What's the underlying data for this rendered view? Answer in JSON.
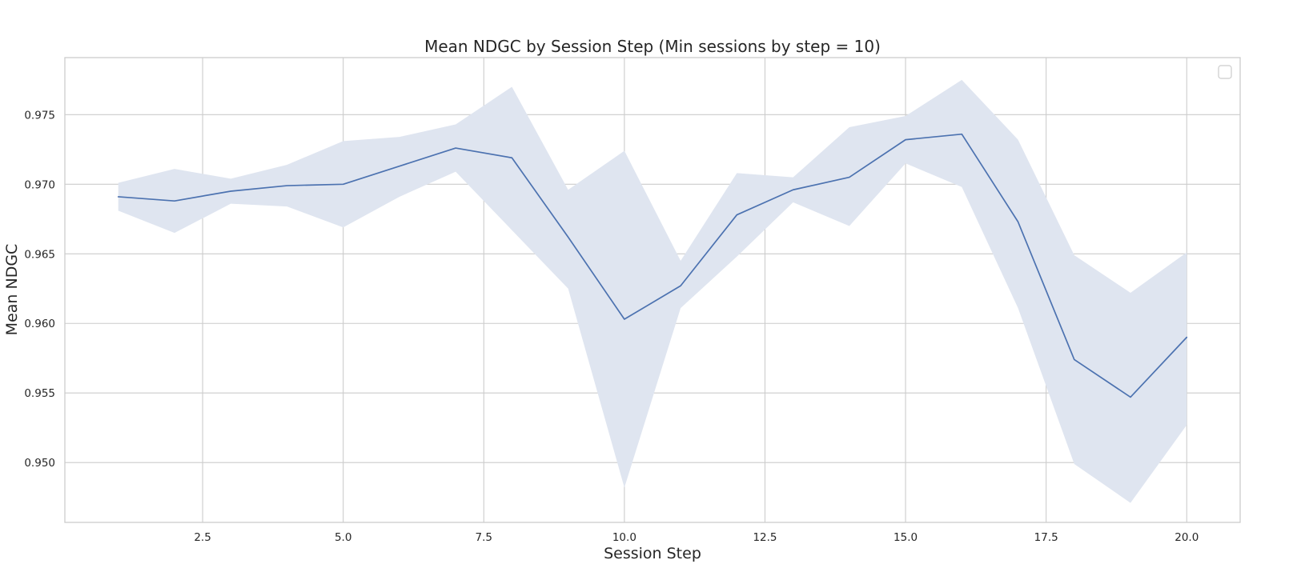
{
  "chart_data": {
    "type": "line",
    "title": "Mean NDGC by Session Step (Min sessions by step = 10)",
    "xlabel": "Session Step",
    "ylabel": "Mean NDGC",
    "xlim": [
      0.05,
      20.95
    ],
    "ylim": [
      0.9457,
      0.9791
    ],
    "xticks": [
      2.5,
      5.0,
      7.5,
      10.0,
      12.5,
      15.0,
      17.5,
      20.0
    ],
    "xtick_labels": [
      "2.5",
      "5.0",
      "7.5",
      "10.0",
      "12.5",
      "15.0",
      "17.5",
      "20.0"
    ],
    "yticks": [
      0.95,
      0.955,
      0.96,
      0.965,
      0.97,
      0.975
    ],
    "ytick_labels": [
      "0.950",
      "0.955",
      "0.960",
      "0.965",
      "0.970",
      "0.975"
    ],
    "grid": true,
    "legend": "top-right (empty)",
    "series": [
      {
        "color": "#4c72b0",
        "band_color": "#dfe5f0",
        "x": [
          1,
          2,
          3,
          4,
          5,
          6,
          7,
          8,
          9,
          10,
          11,
          12,
          13,
          14,
          15,
          16,
          17,
          18,
          19,
          20
        ],
        "y": [
          0.9691,
          0.9688,
          0.9695,
          0.9699,
          0.97,
          0.9713,
          0.9726,
          0.9719,
          0.9662,
          0.9603,
          0.9627,
          0.9678,
          0.9696,
          0.9705,
          0.9732,
          0.9736,
          0.9673,
          0.9574,
          0.9547,
          0.959
        ],
        "ci_upper": [
          0.9701,
          0.9711,
          0.9704,
          0.9714,
          0.9731,
          0.9734,
          0.9743,
          0.977,
          0.9696,
          0.9724,
          0.9645,
          0.9708,
          0.9705,
          0.9741,
          0.9749,
          0.9775,
          0.9732,
          0.9649,
          0.9622,
          0.9651
        ],
        "ci_lower": [
          0.9681,
          0.9665,
          0.9686,
          0.9684,
          0.9669,
          0.9691,
          0.9709,
          0.9667,
          0.9625,
          0.9482,
          0.9611,
          0.9648,
          0.9687,
          0.967,
          0.9715,
          0.9698,
          0.9611,
          0.9499,
          0.9471,
          0.9527
        ]
      }
    ]
  }
}
